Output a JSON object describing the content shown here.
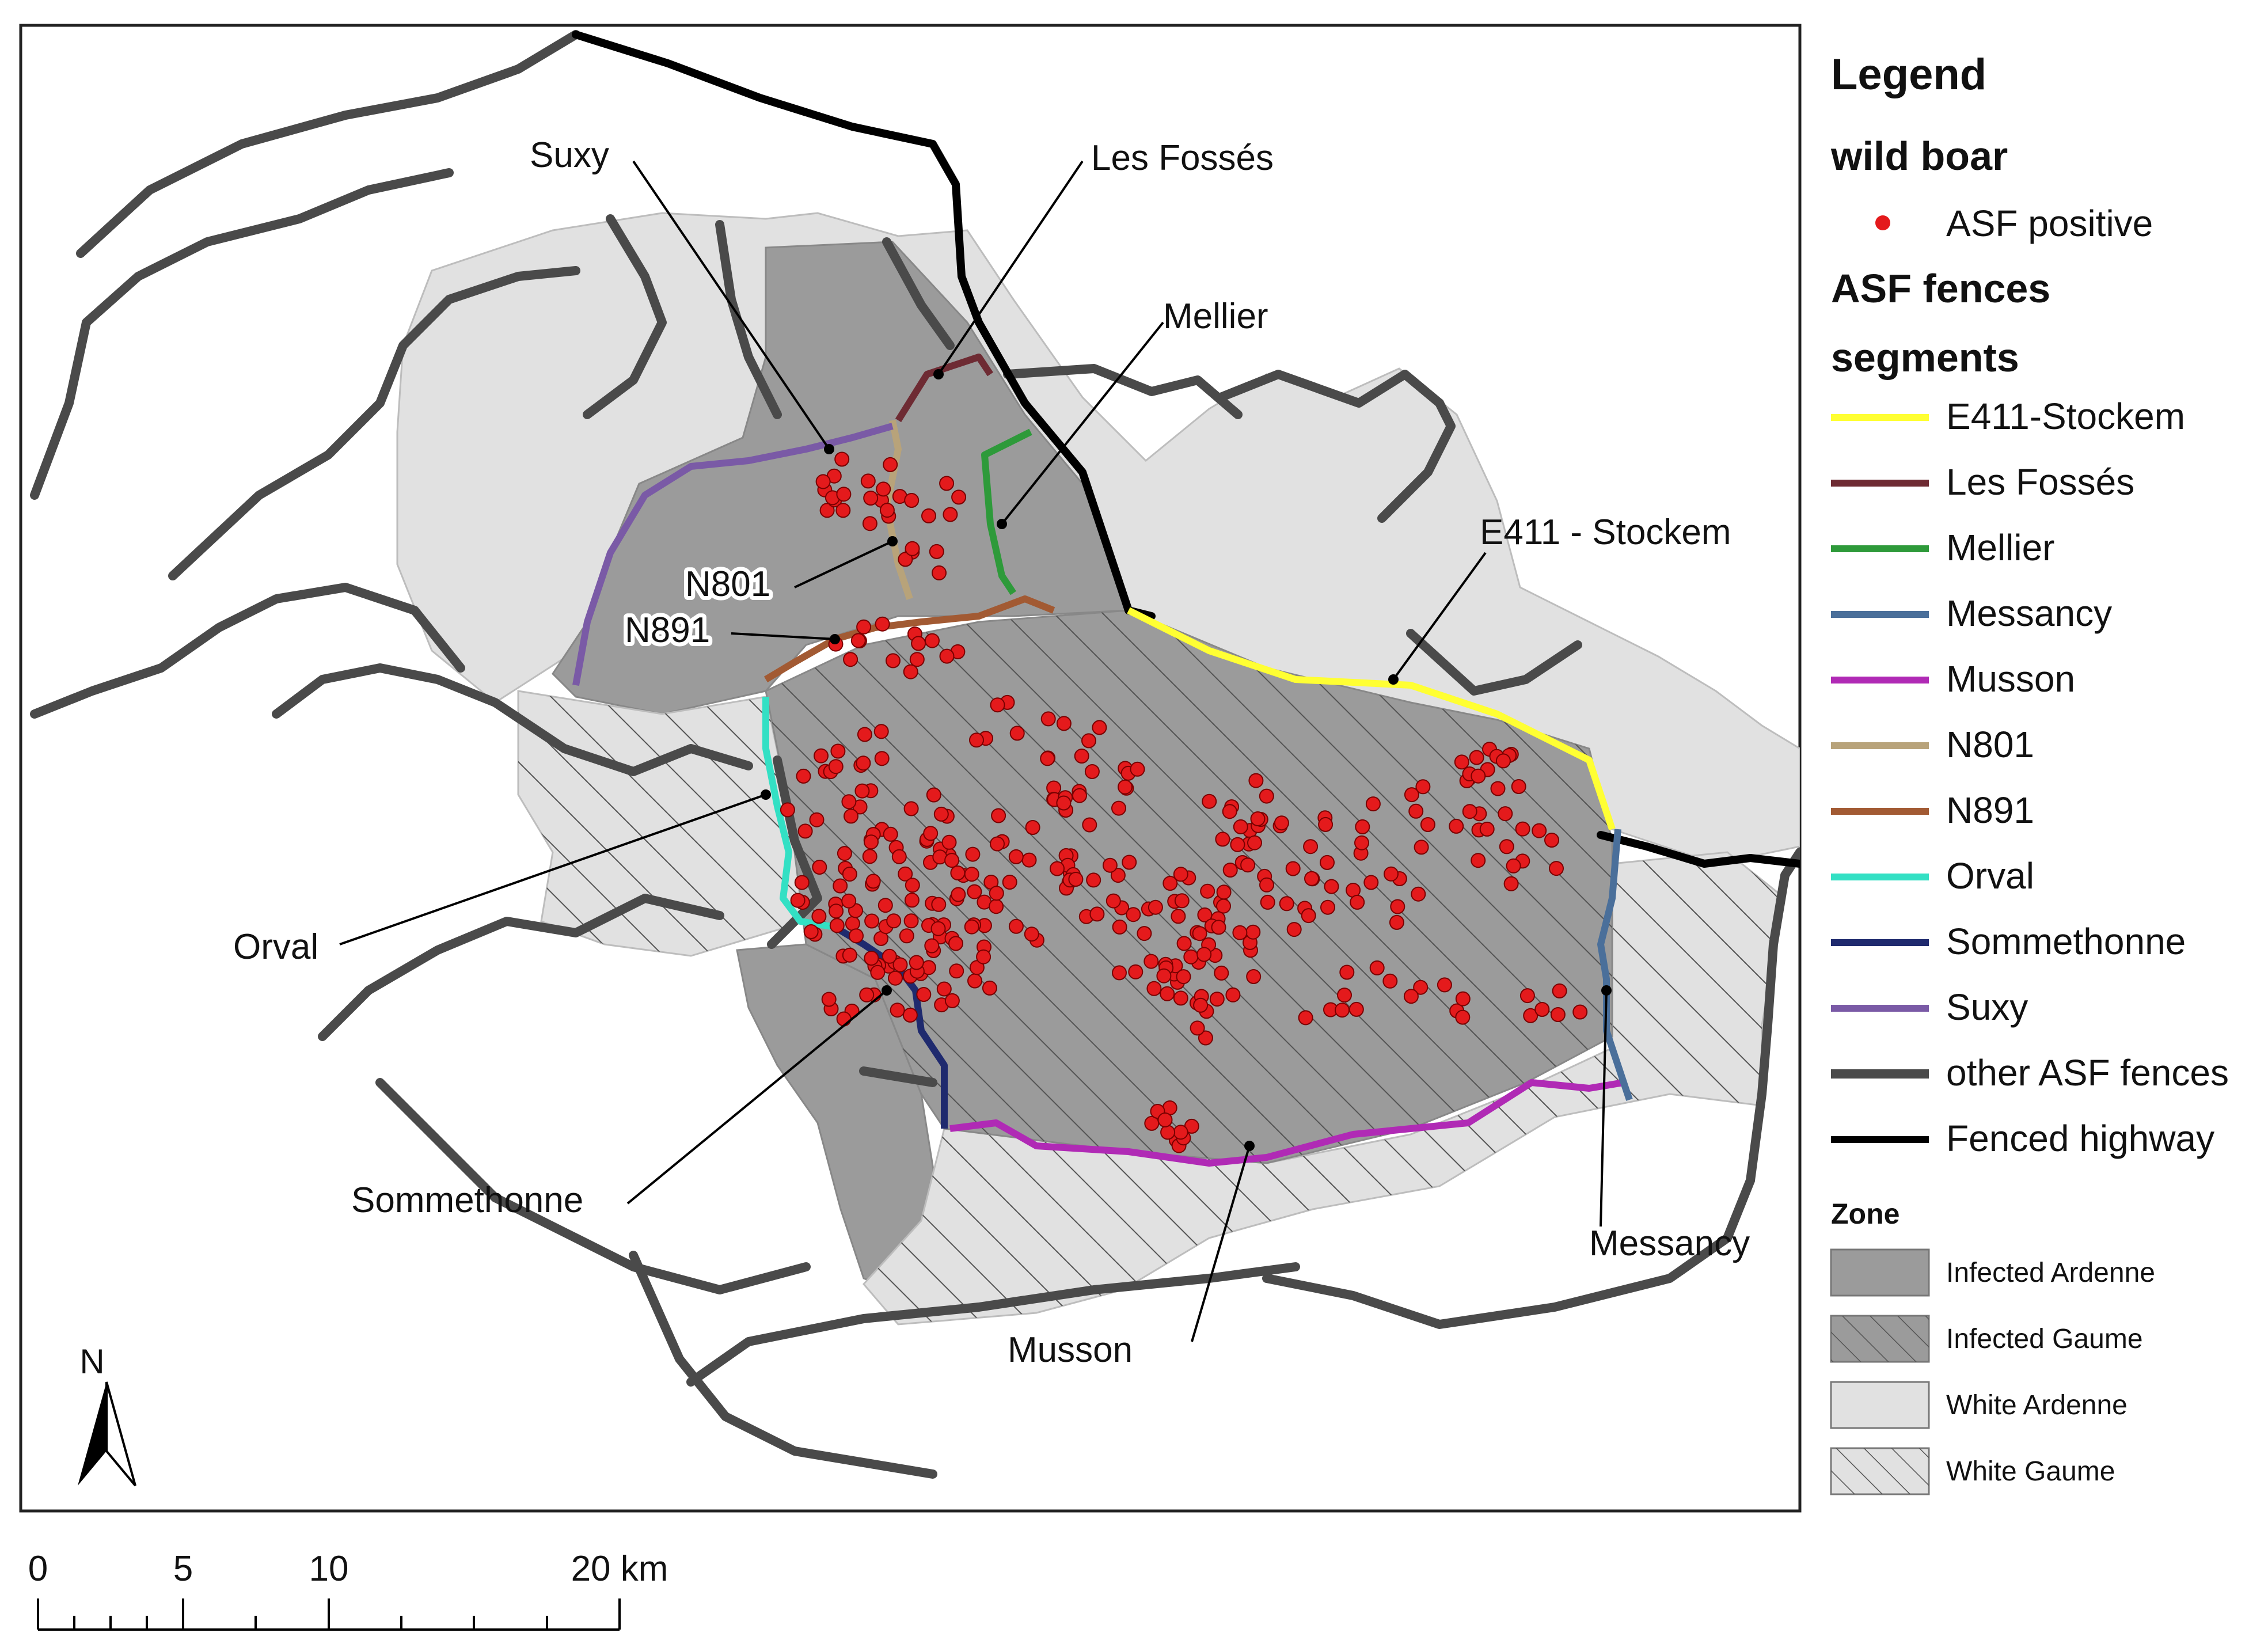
{
  "legend": {
    "title": "Legend",
    "wild_boar_heading": "wild boar",
    "asf_positive": "ASF positive",
    "fences_heading_line1": "ASF fences",
    "fences_heading_line2": "segments",
    "segments": [
      {
        "label": "E411-Stockem",
        "color": "#ffff33"
      },
      {
        "label": "Les Fossés",
        "color": "#6e2b33"
      },
      {
        "label": "Mellier",
        "color": "#2e9a3a"
      },
      {
        "label": "Messancy",
        "color": "#4a6f9a"
      },
      {
        "label": "Musson",
        "color": "#b02ab5"
      },
      {
        "label": "N801",
        "color": "#b8a37a"
      },
      {
        "label": "N891",
        "color": "#a25a33"
      },
      {
        "label": "Orval",
        "color": "#33e0c4"
      },
      {
        "label": "Sommethonne",
        "color": "#1f2a6e"
      },
      {
        "label": "Suxy",
        "color": "#7a5aa6"
      },
      {
        "label": "other ASF fences",
        "color": "#4a4a4a"
      },
      {
        "label": "Fenced highway",
        "color": "#000000"
      }
    ],
    "zone_heading": "Zone",
    "zones": [
      {
        "label": "Infected Ardenne",
        "fill": "#9b9b9b",
        "hatched": false
      },
      {
        "label": "Infected Gaume",
        "fill": "#9b9b9b",
        "hatched": true
      },
      {
        "label": "White Ardenne",
        "fill": "#e1e1e1",
        "hatched": false
      },
      {
        "label": "White Gaume",
        "fill": "#e1e1e1",
        "hatched": true
      }
    ]
  },
  "map_labels": {
    "suxy": "Suxy",
    "les_fosses": "Les Fossés",
    "mellier": "Mellier",
    "e411_stockem": "E411 - Stockem",
    "n801": "N801",
    "n891": "N891",
    "orval": "Orval",
    "sommethonne": "Sommethonne",
    "musson": "Musson",
    "messancy": "Messancy"
  },
  "north_arrow": "N",
  "scale_bar": {
    "ticks": [
      "0",
      "5",
      "10",
      "20 km"
    ]
  },
  "colors": {
    "asf_point": "#e41a1c",
    "infected_zone": "#9b9b9b",
    "white_zone": "#e1e1e1",
    "fence": "#4a4a4a",
    "highway": "#000000"
  }
}
